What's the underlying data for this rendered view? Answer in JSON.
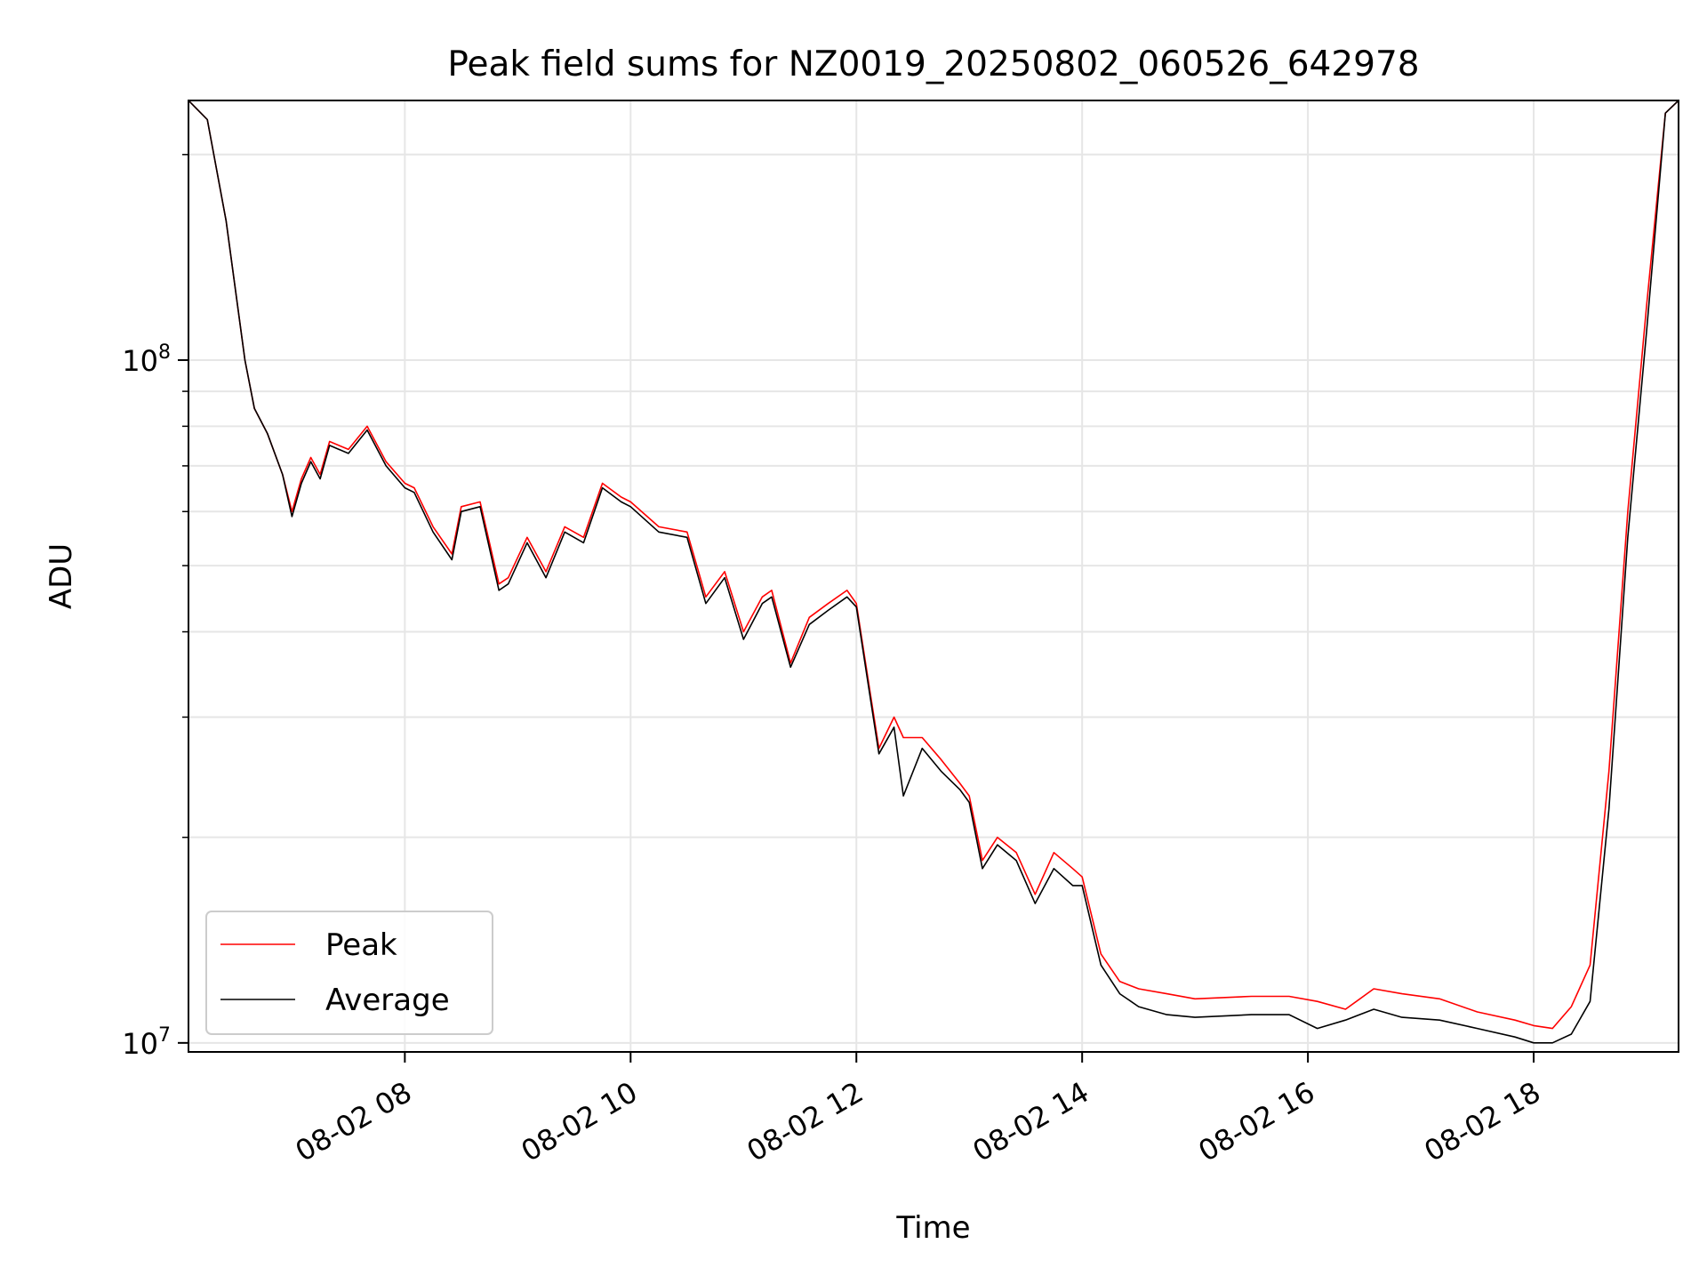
{
  "chart_data": {
    "type": "line",
    "title": "Peak field sums for NZ0019_20250802_060526_642978",
    "xlabel": "Time",
    "ylabel": "ADU",
    "yscale": "log",
    "grid": true,
    "legend_position": "lower-left",
    "xlim": [
      "2025-08-02 06:05",
      "2025-08-02 19:17"
    ],
    "ylim": [
      9700000,
      240000000
    ],
    "x_ticks": [
      "2025-08-02 08:00",
      "2025-08-02 10:00",
      "2025-08-02 12:00",
      "2025-08-02 14:00",
      "2025-08-02 16:00",
      "2025-08-02 18:00"
    ],
    "x_tick_labels": [
      "08-02 08",
      "08-02 10",
      "08-02 12",
      "08-02 14",
      "08-02 16",
      "08-02 18"
    ],
    "y_major_ticks": [
      10000000,
      100000000
    ],
    "y_tick_labels": [
      {
        "base": "10",
        "exp": "7"
      },
      {
        "base": "10",
        "exp": "8"
      }
    ],
    "y_minor_ticks": [
      20000000,
      30000000,
      40000000,
      50000000,
      60000000,
      70000000,
      80000000,
      90000000,
      200000000
    ],
    "series": [
      {
        "name": "Peak",
        "color": "#ff0000",
        "x": [
          "2025-08-02 06:05",
          "2025-08-02 06:15",
          "2025-08-02 06:25",
          "2025-08-02 06:35",
          "2025-08-02 06:40",
          "2025-08-02 06:47",
          "2025-08-02 06:55",
          "2025-08-02 07:00",
          "2025-08-02 07:05",
          "2025-08-02 07:10",
          "2025-08-02 07:15",
          "2025-08-02 07:20",
          "2025-08-02 07:30",
          "2025-08-02 07:40",
          "2025-08-02 07:50",
          "2025-08-02 08:00",
          "2025-08-02 08:05",
          "2025-08-02 08:15",
          "2025-08-02 08:25",
          "2025-08-02 08:30",
          "2025-08-02 08:40",
          "2025-08-02 08:50",
          "2025-08-02 08:55",
          "2025-08-02 09:05",
          "2025-08-02 09:15",
          "2025-08-02 09:25",
          "2025-08-02 09:35",
          "2025-08-02 09:45",
          "2025-08-02 09:55",
          "2025-08-02 10:00",
          "2025-08-02 10:15",
          "2025-08-02 10:30",
          "2025-08-02 10:40",
          "2025-08-02 10:50",
          "2025-08-02 11:00",
          "2025-08-02 11:10",
          "2025-08-02 11:15",
          "2025-08-02 11:25",
          "2025-08-02 11:35",
          "2025-08-02 11:45",
          "2025-08-02 11:55",
          "2025-08-02 12:00",
          "2025-08-02 12:07",
          "2025-08-02 12:12",
          "2025-08-02 12:20",
          "2025-08-02 12:25",
          "2025-08-02 12:35",
          "2025-08-02 12:45",
          "2025-08-02 12:55",
          "2025-08-02 13:00",
          "2025-08-02 13:07",
          "2025-08-02 13:15",
          "2025-08-02 13:25",
          "2025-08-02 13:35",
          "2025-08-02 13:45",
          "2025-08-02 13:55",
          "2025-08-02 14:00",
          "2025-08-02 14:10",
          "2025-08-02 14:20",
          "2025-08-02 14:30",
          "2025-08-02 14:45",
          "2025-08-02 15:00",
          "2025-08-02 15:30",
          "2025-08-02 15:50",
          "2025-08-02 16:05",
          "2025-08-02 16:20",
          "2025-08-02 16:35",
          "2025-08-02 16:50",
          "2025-08-02 17:10",
          "2025-08-02 17:30",
          "2025-08-02 17:50",
          "2025-08-02 18:00",
          "2025-08-02 18:10",
          "2025-08-02 18:20",
          "2025-08-02 18:30",
          "2025-08-02 18:40",
          "2025-08-02 18:50",
          "2025-08-02 19:00",
          "2025-08-02 19:10",
          "2025-08-02 19:17"
        ],
        "values": [
          240000000,
          225000000,
          160000000,
          100000000,
          85000000,
          78000000,
          68000000,
          60000000,
          67000000,
          72000000,
          68000000,
          76000000,
          74000000,
          80000000,
          71000000,
          66000000,
          65000000,
          57000000,
          52000000,
          61000000,
          62000000,
          47000000,
          48000000,
          55000000,
          49000000,
          57000000,
          55000000,
          66000000,
          63000000,
          62000000,
          57000000,
          56000000,
          45000000,
          49000000,
          40000000,
          45000000,
          46000000,
          36000000,
          42000000,
          44000000,
          46000000,
          44000000,
          33000000,
          27000000,
          30000000,
          28000000,
          28000000,
          26000000,
          24000000,
          23000000,
          18500000,
          20000000,
          19000000,
          16500000,
          19000000,
          18000000,
          17500000,
          13500000,
          12300000,
          12000000,
          11800000,
          11600000,
          11700000,
          11700000,
          11500000,
          11200000,
          12000000,
          11800000,
          11600000,
          11100000,
          10800000,
          10600000,
          10500000,
          11300000,
          13000000,
          25000000,
          60000000,
          120000000,
          230000000,
          240000000
        ]
      },
      {
        "name": "Average",
        "color": "#000000",
        "x": [
          "2025-08-02 06:05",
          "2025-08-02 06:15",
          "2025-08-02 06:25",
          "2025-08-02 06:35",
          "2025-08-02 06:40",
          "2025-08-02 06:47",
          "2025-08-02 06:55",
          "2025-08-02 07:00",
          "2025-08-02 07:05",
          "2025-08-02 07:10",
          "2025-08-02 07:15",
          "2025-08-02 07:20",
          "2025-08-02 07:30",
          "2025-08-02 07:40",
          "2025-08-02 07:50",
          "2025-08-02 08:00",
          "2025-08-02 08:05",
          "2025-08-02 08:15",
          "2025-08-02 08:25",
          "2025-08-02 08:30",
          "2025-08-02 08:40",
          "2025-08-02 08:50",
          "2025-08-02 08:55",
          "2025-08-02 09:05",
          "2025-08-02 09:15",
          "2025-08-02 09:25",
          "2025-08-02 09:35",
          "2025-08-02 09:45",
          "2025-08-02 09:55",
          "2025-08-02 10:00",
          "2025-08-02 10:15",
          "2025-08-02 10:30",
          "2025-08-02 10:40",
          "2025-08-02 10:50",
          "2025-08-02 11:00",
          "2025-08-02 11:10",
          "2025-08-02 11:15",
          "2025-08-02 11:25",
          "2025-08-02 11:35",
          "2025-08-02 11:45",
          "2025-08-02 11:55",
          "2025-08-02 12:00",
          "2025-08-02 12:07",
          "2025-08-02 12:12",
          "2025-08-02 12:20",
          "2025-08-02 12:25",
          "2025-08-02 12:35",
          "2025-08-02 12:45",
          "2025-08-02 12:55",
          "2025-08-02 13:00",
          "2025-08-02 13:07",
          "2025-08-02 13:15",
          "2025-08-02 13:25",
          "2025-08-02 13:35",
          "2025-08-02 13:45",
          "2025-08-02 13:55",
          "2025-08-02 14:00",
          "2025-08-02 14:10",
          "2025-08-02 14:20",
          "2025-08-02 14:30",
          "2025-08-02 14:45",
          "2025-08-02 15:00",
          "2025-08-02 15:30",
          "2025-08-02 15:50",
          "2025-08-02 16:05",
          "2025-08-02 16:20",
          "2025-08-02 16:35",
          "2025-08-02 16:50",
          "2025-08-02 17:10",
          "2025-08-02 17:30",
          "2025-08-02 17:50",
          "2025-08-02 18:00",
          "2025-08-02 18:10",
          "2025-08-02 18:20",
          "2025-08-02 18:30",
          "2025-08-02 18:40",
          "2025-08-02 18:50",
          "2025-08-02 19:00",
          "2025-08-02 19:10",
          "2025-08-02 19:17"
        ],
        "values": [
          240000000,
          225000000,
          160000000,
          100000000,
          85000000,
          78000000,
          68000000,
          59000000,
          66000000,
          71000000,
          67000000,
          75000000,
          73000000,
          79000000,
          70000000,
          65000000,
          64000000,
          56000000,
          51000000,
          60000000,
          61000000,
          46000000,
          47000000,
          54000000,
          48000000,
          56000000,
          54000000,
          65000000,
          62000000,
          61000000,
          56000000,
          55000000,
          44000000,
          48000000,
          39000000,
          44000000,
          45000000,
          35500000,
          41000000,
          43000000,
          45000000,
          43500000,
          32500000,
          26500000,
          29000000,
          23000000,
          27000000,
          25000000,
          23500000,
          22500000,
          18000000,
          19500000,
          18500000,
          16000000,
          18000000,
          17000000,
          17000000,
          13000000,
          11800000,
          11300000,
          11000000,
          10900000,
          11000000,
          11000000,
          10500000,
          10800000,
          11200000,
          10900000,
          10800000,
          10500000,
          10200000,
          10000000,
          10000000,
          10300000,
          11500000,
          22000000,
          55000000,
          110000000,
          230000000,
          240000000
        ]
      }
    ]
  }
}
